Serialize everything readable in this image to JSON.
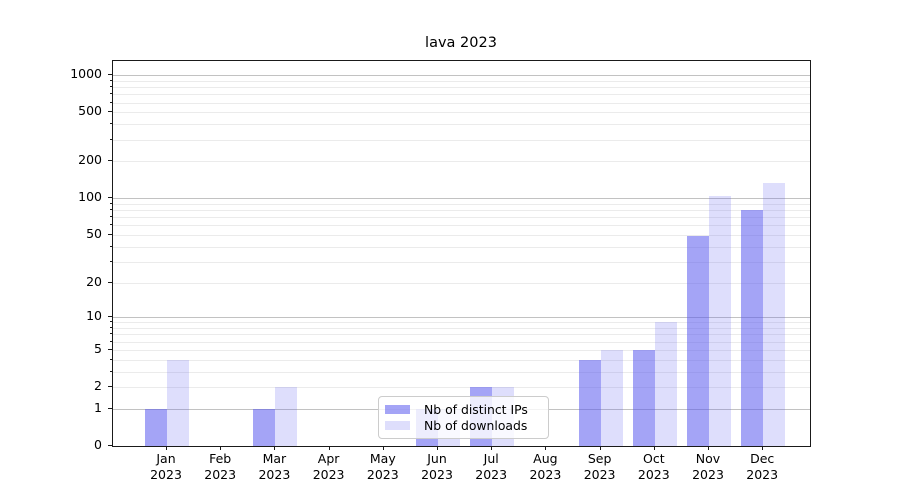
{
  "chart_data": {
    "type": "bar",
    "title": "lava 2023",
    "categories": [
      "Jan",
      "Feb",
      "Mar",
      "Apr",
      "May",
      "Jun",
      "Jul",
      "Aug",
      "Sep",
      "Oct",
      "Nov",
      "Dec"
    ],
    "category_year": "2023",
    "series": [
      {
        "name": "Nb of distinct IPs",
        "color": "#5a5aef",
        "alpha": 0.55,
        "values": [
          1,
          0,
          1,
          0,
          0,
          1,
          2,
          0,
          4,
          5,
          49,
          80
        ]
      },
      {
        "name": "Nb of downloads",
        "color": "#5a5aef",
        "alpha": 0.2,
        "values": [
          4,
          0,
          2,
          0,
          0,
          1,
          2,
          0,
          5,
          9,
          104,
          133
        ]
      }
    ],
    "y_axis": {
      "scale": "log10(value+1)",
      "max": 1300,
      "ticks": [
        0,
        1,
        2,
        5,
        10,
        20,
        50,
        100,
        200,
        500,
        1000
      ],
      "major_grid_values": [
        1,
        10,
        100,
        1000
      ],
      "minor_grid_values": [
        2,
        3,
        4,
        5,
        6,
        7,
        8,
        9,
        20,
        30,
        40,
        50,
        60,
        70,
        80,
        90,
        200,
        300,
        400,
        500,
        600,
        700,
        800,
        900
      ]
    },
    "grid": true,
    "legend_position": "lower-center",
    "colors": {
      "major_grid": "#c2c2c2",
      "minor_grid": "#ebebeb",
      "axis": "#1a1a1a",
      "bar_on_white_dark": "#a4a4f6",
      "bar_on_white_light": "#dedefb"
    }
  }
}
